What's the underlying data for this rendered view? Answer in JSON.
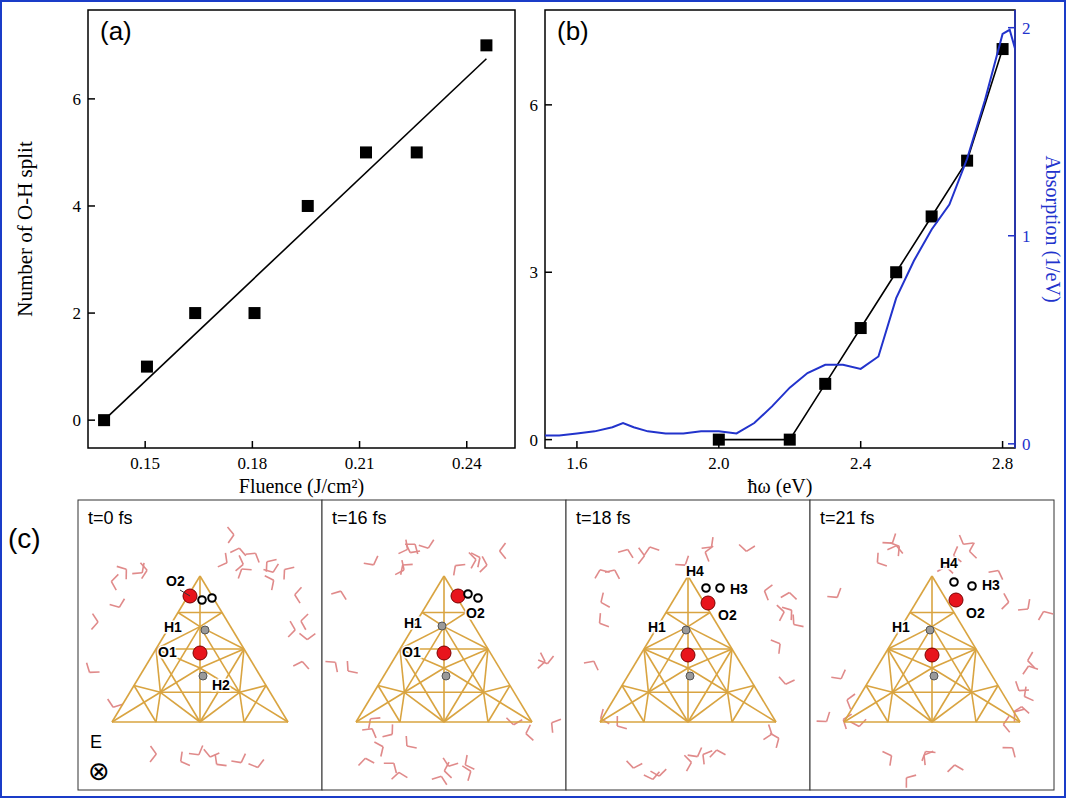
{
  "chart_data": [
    {
      "type": "scatter",
      "title": "(a)",
      "x_label": "Fluence (J/cm²)",
      "y_label": "Number of O-H split",
      "xlim": [
        0.134,
        0.2535
      ],
      "xticks": [
        0.15,
        0.18,
        0.21,
        0.24
      ],
      "ylim": [
        -0.52,
        7.66
      ],
      "yticks": [
        0,
        2,
        4,
        6
      ],
      "series": [
        {
          "type": "scatter",
          "marker": "square",
          "color": "#000000",
          "x": [
            0.1385,
            0.1505,
            0.164,
            0.1806,
            0.1955,
            0.2118,
            0.226,
            0.2455
          ],
          "values": [
            0,
            1,
            2,
            2,
            4,
            5,
            5,
            7
          ]
        },
        {
          "type": "line",
          "line_style": "solid",
          "color": "#000000",
          "x": [
            0.1385,
            0.2455
          ],
          "values": [
            0.0,
            6.75
          ]
        }
      ]
    },
    {
      "type": "line",
      "title": "(b)",
      "x_label": "ħω (eV)",
      "y2_label": "Absorption (1/eV)",
      "xlim": [
        1.51,
        2.835
      ],
      "xticks": [
        1.6,
        {
          "value": 2,
          "label": "2.0"
        },
        2.4,
        2.8
      ],
      "ylim": [
        -0.15,
        7.7
      ],
      "yticks": [
        0,
        3,
        6
      ],
      "y2lim": [
        -0.02,
        2.085
      ],
      "y2ticks": [
        0,
        1,
        2
      ],
      "series": [
        {
          "type": "line",
          "marker": "square",
          "line_style": "solid",
          "color": "#000000",
          "x": [
            2.0,
            2.2,
            2.3,
            2.4,
            2.5,
            2.6,
            2.7,
            2.8
          ],
          "values": [
            0,
            0,
            1,
            2,
            3,
            4,
            5,
            7
          ]
        },
        {
          "type": "line",
          "line_style": "solid",
          "color": "#2233cc",
          "axis": "y2",
          "x": [
            1.51,
            1.55,
            1.6,
            1.65,
            1.7,
            1.73,
            1.76,
            1.8,
            1.85,
            1.9,
            1.95,
            2.0,
            2.05,
            2.1,
            2.15,
            2.2,
            2.25,
            2.3,
            2.35,
            2.4,
            2.45,
            2.5,
            2.55,
            2.6,
            2.65,
            2.7,
            2.75,
            2.8,
            2.82,
            2.835
          ],
          "values": [
            0.04,
            0.04,
            0.05,
            0.06,
            0.08,
            0.1,
            0.08,
            0.06,
            0.05,
            0.05,
            0.06,
            0.06,
            0.05,
            0.1,
            0.18,
            0.27,
            0.34,
            0.38,
            0.38,
            0.36,
            0.42,
            0.7,
            0.88,
            1.03,
            1.15,
            1.37,
            1.65,
            1.97,
            1.99,
            1.9
          ]
        }
      ]
    }
  ],
  "panel_c": {
    "label": "(c)",
    "field_label": "E",
    "field_symbol": "⊗",
    "snapshots": [
      {
        "time": "t=0 fs",
        "atom_labels": [
          "O2",
          "H1",
          "O1",
          "H2"
        ]
      },
      {
        "time": "t=16 fs",
        "atom_labels": [
          "H1",
          "O2",
          "O1"
        ]
      },
      {
        "time": "t=18 fs",
        "atom_labels": [
          "H4",
          "H3",
          "H1",
          "O2"
        ]
      },
      {
        "time": "t=21 fs",
        "atom_labels": [
          "H4",
          "H3",
          "H1",
          "O2"
        ]
      }
    ]
  }
}
